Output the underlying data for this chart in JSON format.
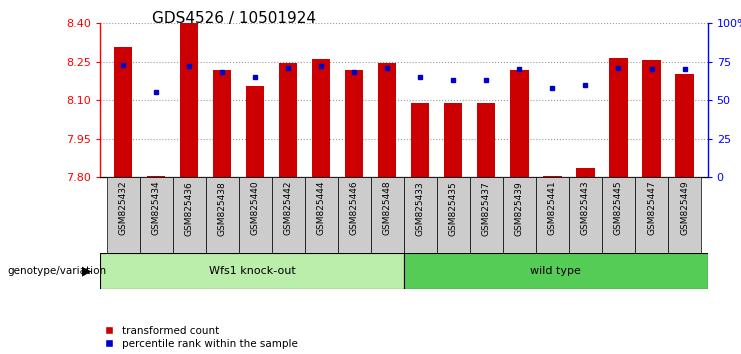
{
  "title": "GDS4526 / 10501924",
  "samples": [
    "GSM825432",
    "GSM825434",
    "GSM825436",
    "GSM825438",
    "GSM825440",
    "GSM825442",
    "GSM825444",
    "GSM825446",
    "GSM825448",
    "GSM825433",
    "GSM825435",
    "GSM825437",
    "GSM825439",
    "GSM825441",
    "GSM825443",
    "GSM825445",
    "GSM825447",
    "GSM825449"
  ],
  "red_values": [
    8.305,
    7.803,
    8.4,
    8.215,
    8.155,
    8.245,
    8.26,
    8.215,
    8.245,
    8.09,
    8.09,
    8.09,
    8.215,
    7.802,
    7.835,
    8.265,
    8.255,
    8.2
  ],
  "blue_pct": [
    73,
    55,
    72,
    68,
    65,
    71,
    72,
    68,
    71,
    65,
    63,
    63,
    70,
    58,
    60,
    71,
    70,
    70
  ],
  "ymin": 7.8,
  "ymax": 8.4,
  "yr_min": 0,
  "yr_max": 100,
  "yticks_left": [
    7.8,
    7.95,
    8.1,
    8.25,
    8.4
  ],
  "yticks_right": [
    0,
    25,
    50,
    75,
    100
  ],
  "bar_color": "#cc0000",
  "dot_color": "#0000cc",
  "ko_color": "#bbeeaa",
  "wt_color": "#55cc55",
  "tick_bg_color": "#cccccc",
  "group_labels": [
    "Wfs1 knock-out",
    "wild type"
  ],
  "legend_labels": [
    "transformed count",
    "percentile rank within the sample"
  ],
  "genotype_label": "genotype/variation",
  "n_ko": 9,
  "n_wt": 9,
  "title_fontsize": 11,
  "tick_fontsize": 6.5,
  "group_fontsize": 8,
  "legend_fontsize": 7.5
}
